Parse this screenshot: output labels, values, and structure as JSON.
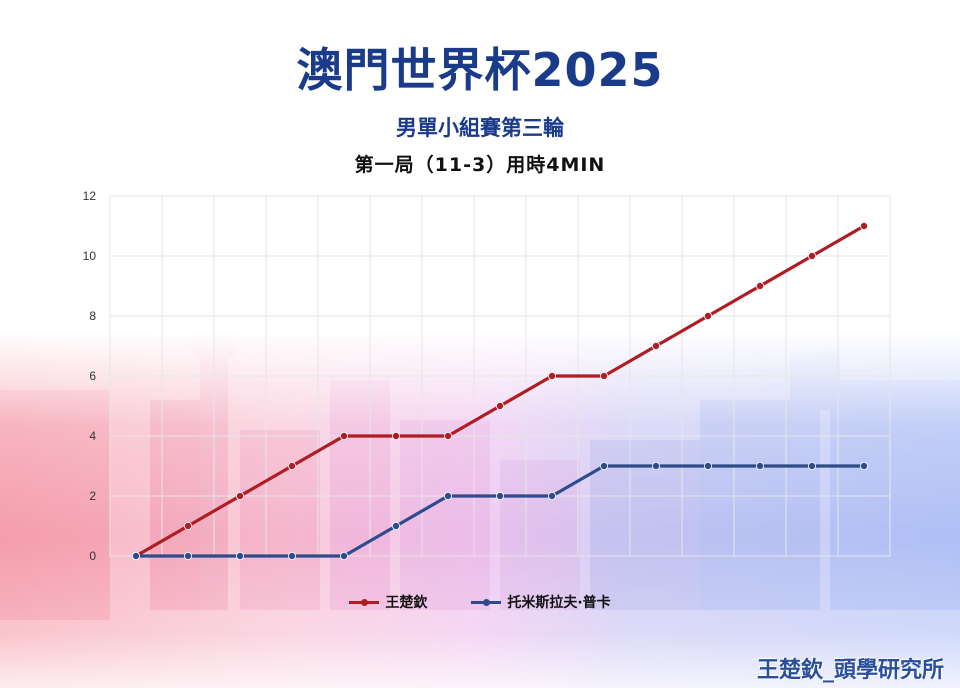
{
  "header": {
    "title": "澳門世界杯2025",
    "subtitle": "男單小組賽第三輪",
    "game_info": "第一局（11-3）用時4MIN"
  },
  "watermark": "王楚欽_頭學研究所",
  "colors": {
    "series1": "#b01c24",
    "series2": "#2e4c8c",
    "title": "#1a3a8a",
    "grid": "#e6e6e6"
  },
  "chart_data": {
    "type": "line",
    "x": [
      0,
      1,
      2,
      3,
      4,
      5,
      6,
      7,
      8,
      9,
      10,
      11,
      12,
      13,
      14
    ],
    "series": [
      {
        "name": "王楚欽",
        "values": [
          0,
          1,
          2,
          3,
          4,
          4,
          4,
          5,
          6,
          6,
          7,
          8,
          9,
          10,
          11
        ]
      },
      {
        "name": "托米斯拉夫·普卡",
        "values": [
          0,
          0,
          0,
          0,
          0,
          1,
          2,
          2,
          2,
          3,
          3,
          3,
          3,
          3,
          3
        ]
      }
    ],
    "ylim": [
      0,
      12
    ],
    "yticks": [
      "0",
      "2",
      "4",
      "6",
      "8",
      "10",
      "12"
    ],
    "grid": true,
    "legend": "bottom"
  }
}
